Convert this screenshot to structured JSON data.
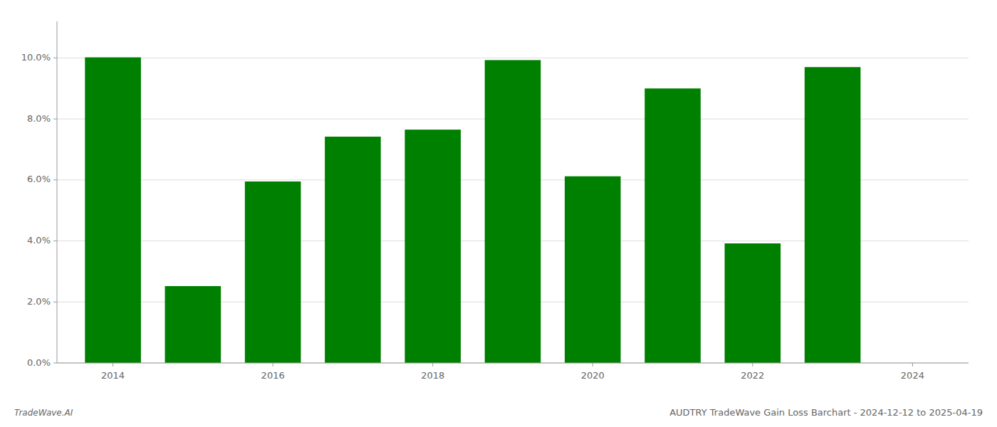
{
  "chart_data": {
    "type": "bar",
    "title": "AUDTRY TradeWave Gain Loss Barchart - 2024-12-12 to 2025-04-19",
    "annotations": [
      "TradeWave.AI"
    ],
    "x": [
      2014,
      2015,
      2016,
      2017,
      2018,
      2019,
      2020,
      2021,
      2022,
      2023
    ],
    "values": [
      0.1002,
      0.0252,
      0.0595,
      0.0742,
      0.0765,
      0.0993,
      0.0612,
      0.09,
      0.0392,
      0.097
    ],
    "color": "#008000",
    "xlim": [
      2013.3,
      2024.7
    ],
    "xticks": [
      2014,
      2016,
      2018,
      2020,
      2022,
      2024
    ],
    "ylim": [
      0,
      0.112
    ],
    "yticks": [
      {
        "value": 0.0,
        "label": "0.0%"
      },
      {
        "value": 0.02,
        "label": "2.0%"
      },
      {
        "value": 0.04,
        "label": "4.0%"
      },
      {
        "value": 0.06,
        "label": "6.0%"
      },
      {
        "value": 0.08,
        "label": "8.0%"
      },
      {
        "value": 0.1,
        "label": "10.0%"
      }
    ],
    "grid": true
  }
}
